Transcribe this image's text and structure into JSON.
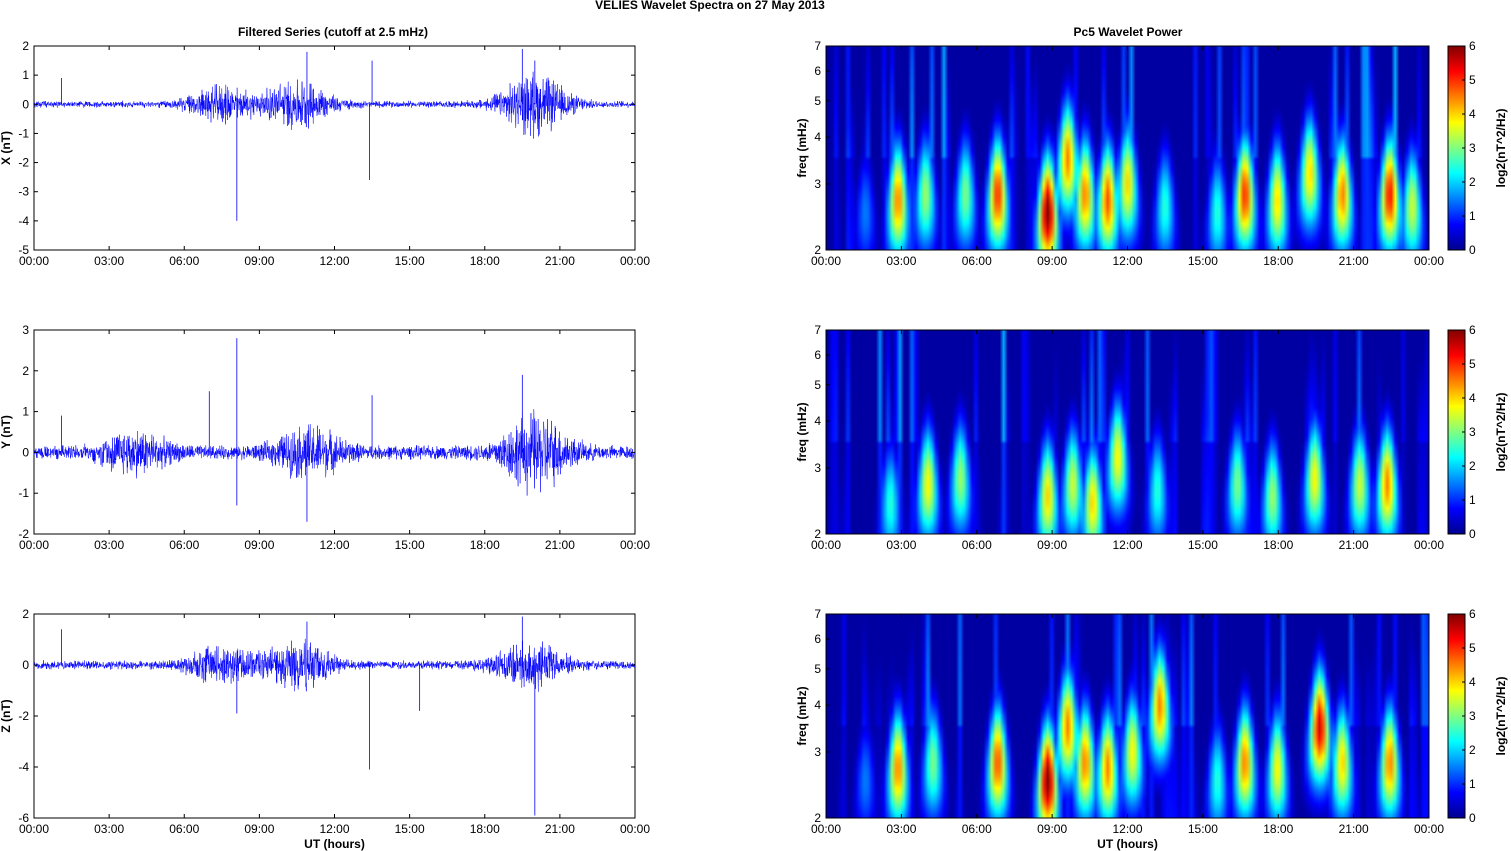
{
  "figure": {
    "title": "VELIES Wavelet Spectra on 27 May      2013",
    "left_title": "Filtered Series (cutoff at 2.5 mHz)",
    "right_title": "Pc5 Wavelet Power"
  },
  "chart_data": [
    {
      "type": "line",
      "panel": "X",
      "ylabel": "X (nT)",
      "ylim": [
        -5,
        2
      ],
      "yticks": [
        2,
        1,
        0,
        -1,
        -2,
        -3,
        -4,
        -5
      ],
      "xlim": [
        "00:00",
        "24:00"
      ],
      "xticks": [
        "00:00",
        "03:00",
        "06:00",
        "09:00",
        "12:00",
        "15:00",
        "18:00",
        "21:00",
        "00:00"
      ],
      "xlabel": "",
      "color": "#0000ff",
      "baseline_amplitude": 0.1,
      "activity": [
        {
          "hour": 7.5,
          "amp": 0.5
        },
        {
          "hour": 10.5,
          "amp": 0.7
        },
        {
          "hour": 20.0,
          "amp": 0.9
        }
      ],
      "spikes": [
        {
          "hour": 1.1,
          "value": 0.9
        },
        {
          "hour": 8.1,
          "value": -4.0
        },
        {
          "hour": 10.9,
          "value": 1.8
        },
        {
          "hour": 13.4,
          "value": -2.6
        },
        {
          "hour": 13.5,
          "value": 1.5
        },
        {
          "hour": 19.5,
          "value": 1.9
        },
        {
          "hour": 20.0,
          "value": 1.5
        }
      ]
    },
    {
      "type": "line",
      "panel": "Y",
      "ylabel": "Y (nT)",
      "ylim": [
        -2,
        3
      ],
      "yticks": [
        3,
        2,
        1,
        0,
        -1,
        -2
      ],
      "xlim": [
        "00:00",
        "24:00"
      ],
      "xticks": [
        "00:00",
        "03:00",
        "06:00",
        "09:00",
        "12:00",
        "15:00",
        "18:00",
        "21:00",
        "00:00"
      ],
      "xlabel": "",
      "color": "#0000ff",
      "baseline_amplitude": 0.15,
      "activity": [
        {
          "hour": 4.0,
          "amp": 0.4
        },
        {
          "hour": 11.0,
          "amp": 0.5
        },
        {
          "hour": 20.0,
          "amp": 0.8
        }
      ],
      "spikes": [
        {
          "hour": 1.1,
          "value": 0.9
        },
        {
          "hour": 8.1,
          "value": 2.8
        },
        {
          "hour": 7.0,
          "value": 1.5
        },
        {
          "hour": 10.9,
          "value": -1.7
        },
        {
          "hour": 13.5,
          "value": 1.4
        },
        {
          "hour": 19.5,
          "value": 1.9
        },
        {
          "hour": 8.1,
          "value": -1.3
        }
      ]
    },
    {
      "type": "line",
      "panel": "Z",
      "ylabel": "Z (nT)",
      "ylim": [
        -6,
        2
      ],
      "yticks": [
        2,
        0,
        -2,
        -4,
        -6
      ],
      "xlim": [
        "00:00",
        "24:00"
      ],
      "xticks": [
        "00:00",
        "03:00",
        "06:00",
        "09:00",
        "12:00",
        "15:00",
        "18:00",
        "21:00",
        "00:00"
      ],
      "xlabel": "UT (hours)",
      "color": "#0000ff",
      "baseline_amplitude": 0.15,
      "activity": [
        {
          "hour": 7.5,
          "amp": 0.6
        },
        {
          "hour": 10.5,
          "amp": 0.8
        },
        {
          "hour": 19.8,
          "amp": 0.8
        }
      ],
      "spikes": [
        {
          "hour": 1.1,
          "value": 1.4
        },
        {
          "hour": 10.9,
          "value": 1.7
        },
        {
          "hour": 13.4,
          "value": -4.1
        },
        {
          "hour": 15.4,
          "value": -1.8
        },
        {
          "hour": 19.5,
          "value": 1.9
        },
        {
          "hour": 20.0,
          "value": -5.9
        },
        {
          "hour": 8.1,
          "value": -1.9
        }
      ]
    },
    {
      "type": "heatmap",
      "panel": "X",
      "ylabel": "freq (mHz)",
      "yscale": "log",
      "ylim": [
        2,
        7
      ],
      "yticks": [
        7,
        6,
        5,
        4,
        3,
        2
      ],
      "xlim": [
        "00:00",
        "24:00"
      ],
      "xticks": [
        "00:00",
        "03:00",
        "06:00",
        "09:00",
        "12:00",
        "15:00",
        "18:00",
        "21:00",
        "00:00"
      ],
      "xlabel": "",
      "colorbar_label": "log2(nT^2/Hz)",
      "clim": [
        0,
        6
      ],
      "cticks": [
        6,
        5,
        4,
        3,
        2,
        1,
        0
      ],
      "colormap": "jet",
      "features": [
        {
          "hour": 1.5,
          "freq": 2.5,
          "power": 1.5
        },
        {
          "hour": 2.8,
          "freq": 2.7,
          "power": 4.5
        },
        {
          "hour": 3.9,
          "freq": 2.8,
          "power": 3.2
        },
        {
          "hour": 5.5,
          "freq": 2.8,
          "power": 3.0
        },
        {
          "hour": 6.8,
          "freq": 2.8,
          "power": 5.0
        },
        {
          "hour": 8.8,
          "freq": 2.5,
          "power": 6.0
        },
        {
          "hour": 9.6,
          "freq": 3.5,
          "power": 4.5
        },
        {
          "hour": 10.3,
          "freq": 2.8,
          "power": 4.5
        },
        {
          "hour": 11.2,
          "freq": 2.7,
          "power": 4.8
        },
        {
          "hour": 12.0,
          "freq": 3.0,
          "power": 4.0
        },
        {
          "hour": 13.5,
          "freq": 2.6,
          "power": 2.5
        },
        {
          "hour": 15.6,
          "freq": 2.5,
          "power": 2.5
        },
        {
          "hour": 16.7,
          "freq": 2.8,
          "power": 5.0
        },
        {
          "hour": 18.0,
          "freq": 2.7,
          "power": 4.0
        },
        {
          "hour": 19.3,
          "freq": 3.2,
          "power": 4.0
        },
        {
          "hour": 20.6,
          "freq": 2.8,
          "power": 4.5
        },
        {
          "hour": 22.5,
          "freq": 2.8,
          "power": 5.2
        },
        {
          "hour": 23.4,
          "freq": 2.6,
          "power": 3.5
        }
      ]
    },
    {
      "type": "heatmap",
      "panel": "Y",
      "ylabel": "freq (mHz)",
      "yscale": "log",
      "ylim": [
        2,
        7
      ],
      "yticks": [
        7,
        6,
        5,
        4,
        3,
        2
      ],
      "xlim": [
        "00:00",
        "24:00"
      ],
      "xticks": [
        "00:00",
        "03:00",
        "06:00",
        "09:00",
        "12:00",
        "15:00",
        "18:00",
        "21:00",
        "00:00"
      ],
      "xlabel": "",
      "colorbar_label": "log2(nT^2/Hz)",
      "clim": [
        0,
        6
      ],
      "cticks": [
        6,
        5,
        4,
        3,
        2,
        1,
        0
      ],
      "colormap": "jet",
      "features": [
        {
          "hour": 2.5,
          "freq": 2.4,
          "power": 2.5
        },
        {
          "hour": 4.0,
          "freq": 2.7,
          "power": 3.8
        },
        {
          "hour": 5.3,
          "freq": 2.8,
          "power": 3.2
        },
        {
          "hour": 8.8,
          "freq": 2.5,
          "power": 4.0
        },
        {
          "hour": 9.8,
          "freq": 2.7,
          "power": 3.5
        },
        {
          "hour": 10.6,
          "freq": 2.4,
          "power": 4.0
        },
        {
          "hour": 11.6,
          "freq": 3.2,
          "power": 3.8
        },
        {
          "hour": 13.2,
          "freq": 2.6,
          "power": 2.5
        },
        {
          "hour": 16.4,
          "freq": 2.7,
          "power": 3.0
        },
        {
          "hour": 17.8,
          "freq": 2.5,
          "power": 3.2
        },
        {
          "hour": 19.5,
          "freq": 2.8,
          "power": 3.8
        },
        {
          "hour": 21.3,
          "freq": 2.7,
          "power": 3.5
        },
        {
          "hour": 22.4,
          "freq": 2.7,
          "power": 4.5
        }
      ]
    },
    {
      "type": "heatmap",
      "panel": "Z",
      "ylabel": "freq (mHz)",
      "yscale": "log",
      "ylim": [
        2,
        7
      ],
      "yticks": [
        7,
        6,
        5,
        4,
        3,
        2
      ],
      "xlim": [
        "00:00",
        "24:00"
      ],
      "xticks": [
        "00:00",
        "03:00",
        "06:00",
        "09:00",
        "12:00",
        "15:00",
        "18:00",
        "21:00",
        "00:00"
      ],
      "xlabel": "UT (hours)",
      "colorbar_label": "log2(nT^2/Hz)",
      "clim": [
        0,
        6
      ],
      "cticks": [
        6,
        5,
        4,
        3,
        2,
        1,
        0
      ],
      "colormap": "jet",
      "features": [
        {
          "hour": 1.5,
          "freq": 2.5,
          "power": 1.5
        },
        {
          "hour": 2.8,
          "freq": 2.7,
          "power": 4.5
        },
        {
          "hour": 4.2,
          "freq": 2.8,
          "power": 3.0
        },
        {
          "hour": 6.8,
          "freq": 2.8,
          "power": 4.8
        },
        {
          "hour": 8.8,
          "freq": 2.5,
          "power": 6.0
        },
        {
          "hour": 9.6,
          "freq": 3.5,
          "power": 4.5
        },
        {
          "hour": 10.3,
          "freq": 2.8,
          "power": 4.5
        },
        {
          "hour": 11.2,
          "freq": 2.7,
          "power": 4.5
        },
        {
          "hour": 12.2,
          "freq": 3.0,
          "power": 3.8
        },
        {
          "hour": 13.3,
          "freq": 4.0,
          "power": 4.5
        },
        {
          "hour": 15.6,
          "freq": 2.5,
          "power": 2.5
        },
        {
          "hour": 16.7,
          "freq": 2.8,
          "power": 4.5
        },
        {
          "hour": 18.0,
          "freq": 2.7,
          "power": 3.8
        },
        {
          "hour": 19.7,
          "freq": 3.5,
          "power": 5.5
        },
        {
          "hour": 20.6,
          "freq": 2.8,
          "power": 4.0
        },
        {
          "hour": 22.5,
          "freq": 2.8,
          "power": 4.5
        }
      ]
    }
  ]
}
